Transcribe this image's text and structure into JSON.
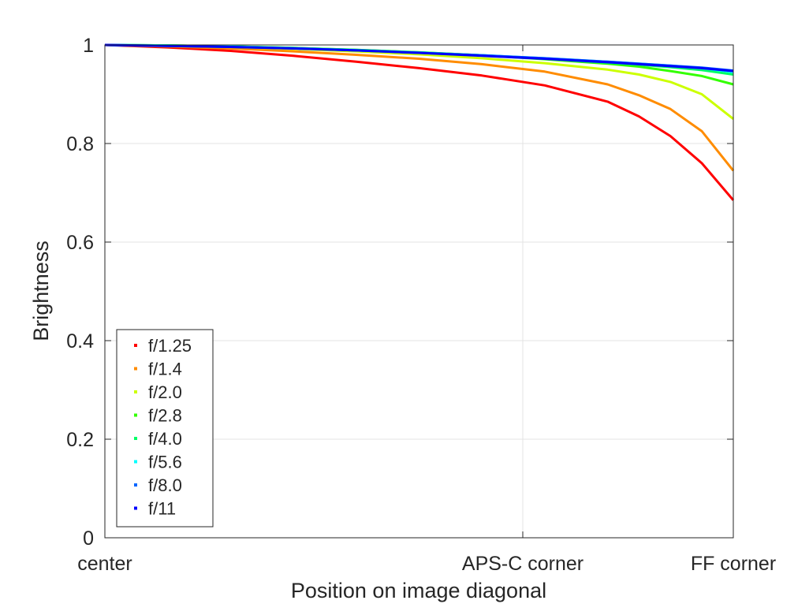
{
  "chart_data": {
    "type": "line",
    "title": "",
    "xlabel": "Position on image diagonal",
    "ylabel": "Brightness",
    "xlim": [
      0,
      1
    ],
    "ylim": [
      0,
      1
    ],
    "grid": true,
    "legend_position": "bottom-left",
    "x_ticks": [
      {
        "value": 0,
        "label": "center"
      },
      {
        "value": 0.665,
        "label": "APS-C corner"
      },
      {
        "value": 1,
        "label": "FF corner"
      }
    ],
    "y_ticks": [
      {
        "value": 0,
        "label": "0"
      },
      {
        "value": 0.2,
        "label": "0.2"
      },
      {
        "value": 0.4,
        "label": "0.4"
      },
      {
        "value": 0.6,
        "label": "0.6"
      },
      {
        "value": 0.8,
        "label": "0.8"
      },
      {
        "value": 1,
        "label": "1"
      }
    ],
    "x": [
      0,
      0.1,
      0.2,
      0.3,
      0.4,
      0.5,
      0.6,
      0.7,
      0.8,
      0.85,
      0.9,
      0.95,
      1.0
    ],
    "series": [
      {
        "name": "f/1.25",
        "color": "#ff0000",
        "values": [
          1.0,
          0.995,
          0.988,
          0.978,
          0.966,
          0.953,
          0.938,
          0.918,
          0.885,
          0.855,
          0.815,
          0.76,
          0.685
        ]
      },
      {
        "name": "f/1.4",
        "color": "#ff8c00",
        "values": [
          1.0,
          0.997,
          0.993,
          0.987,
          0.98,
          0.972,
          0.961,
          0.946,
          0.92,
          0.898,
          0.87,
          0.825,
          0.745
        ]
      },
      {
        "name": "f/2.0",
        "color": "#ccff00",
        "values": [
          1.0,
          0.998,
          0.996,
          0.992,
          0.987,
          0.981,
          0.973,
          0.963,
          0.95,
          0.94,
          0.925,
          0.9,
          0.85
        ]
      },
      {
        "name": "f/2.8",
        "color": "#33ff00",
        "values": [
          1.0,
          0.999,
          0.997,
          0.994,
          0.99,
          0.985,
          0.979,
          0.971,
          0.962,
          0.956,
          0.947,
          0.937,
          0.92
        ]
      },
      {
        "name": "f/4.0",
        "color": "#00ff66",
        "values": [
          1.0,
          0.999,
          0.997,
          0.994,
          0.99,
          0.985,
          0.979,
          0.972,
          0.964,
          0.96,
          0.955,
          0.949,
          0.94
        ]
      },
      {
        "name": "f/5.6",
        "color": "#00ffff",
        "values": [
          1.0,
          0.999,
          0.997,
          0.993,
          0.989,
          0.984,
          0.979,
          0.973,
          0.966,
          0.962,
          0.958,
          0.953,
          0.945
        ]
      },
      {
        "name": "f/8.0",
        "color": "#0066ff",
        "values": [
          1.0,
          0.998,
          0.996,
          0.993,
          0.989,
          0.984,
          0.979,
          0.973,
          0.966,
          0.962,
          0.958,
          0.954,
          0.948
        ]
      },
      {
        "name": "f/11",
        "color": "#0000ff",
        "values": [
          1.0,
          0.998,
          0.996,
          0.993,
          0.989,
          0.984,
          0.978,
          0.972,
          0.965,
          0.961,
          0.957,
          0.953,
          0.947
        ]
      }
    ]
  }
}
